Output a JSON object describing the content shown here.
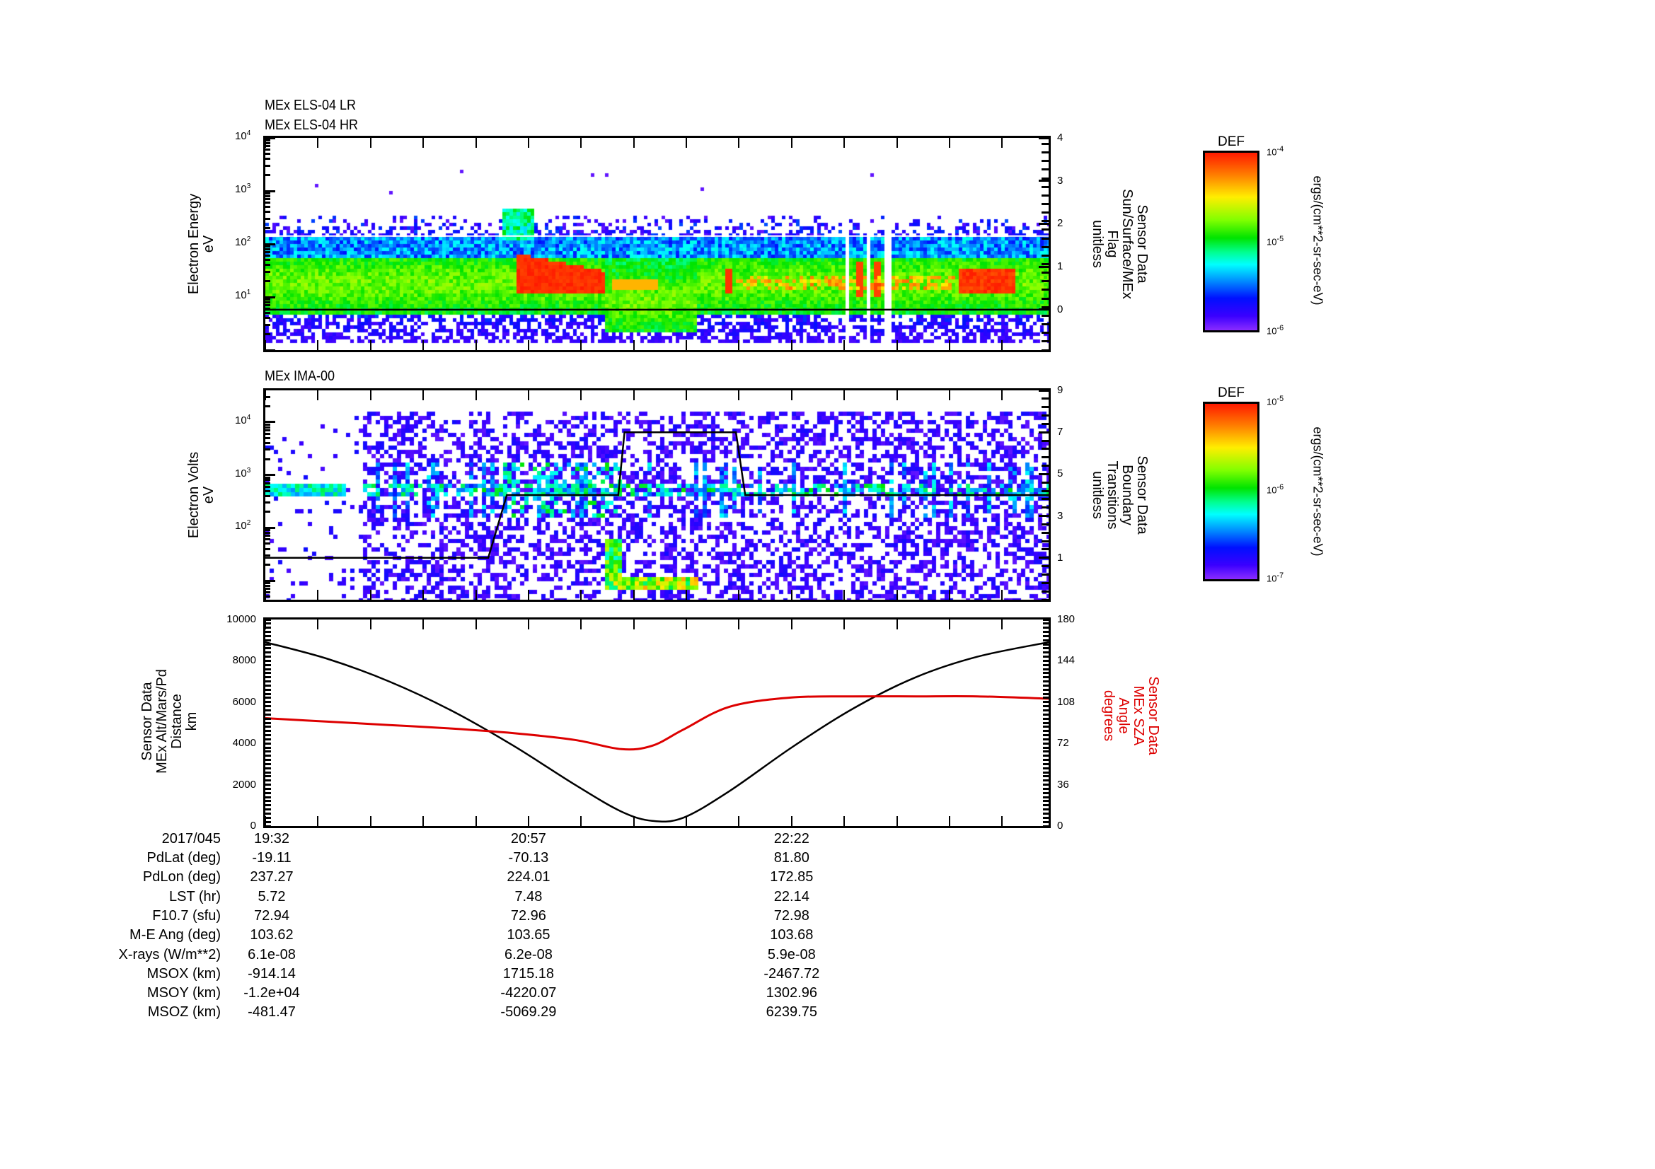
{
  "panels": {
    "els": {
      "titles": [
        "MEx ELS-04 LR",
        "MEx ELS-04 HR"
      ],
      "ylabel": [
        "Electron Energy",
        "eV"
      ],
      "y2label": [
        "Sensor Data",
        "Sun/Surface/MEx",
        "Flag",
        "unitless"
      ],
      "yticks": [
        {
          "exp": "1",
          "v": 1
        },
        {
          "exp": "2",
          "v": 2
        },
        {
          "exp": "3",
          "v": 3
        },
        {
          "exp": "4",
          "v": 4
        }
      ],
      "y2ticks": [
        "0",
        "1",
        "2",
        "3",
        "4"
      ],
      "colorbar": {
        "title": "DEF",
        "max": "-4",
        "mid": "-5",
        "min": "-6",
        "unit": "ergs/(cm**2-sr-sec-eV)"
      }
    },
    "ima": {
      "titles": [
        "MEx IMA-00"
      ],
      "ylabel": [
        "Electron Volts",
        "eV"
      ],
      "y2label": [
        "Sensor Data",
        "Boundary",
        "Transitions",
        "unitless"
      ],
      "yticks": [
        {
          "exp": "2",
          "v": 2
        },
        {
          "exp": "3",
          "v": 3
        },
        {
          "exp": "4",
          "v": 4
        }
      ],
      "y2ticks": [
        "1",
        "3",
        "5",
        "7",
        "9"
      ],
      "colorbar": {
        "title": "DEF",
        "max": "-5",
        "mid": "-6",
        "min": "-7",
        "unit": "ergs/(cm**2-sr-sec-eV)"
      }
    },
    "orbit": {
      "ylabel": [
        "Sensor Data",
        "MEx Alt/Mars/Pd",
        "Distance",
        "km"
      ],
      "y2label": [
        "Sensor Data",
        "MEx SZA",
        "Angle",
        "degrees"
      ],
      "yticks": [
        "0",
        "2000",
        "4000",
        "6000",
        "8000",
        "10000"
      ],
      "y2ticks": [
        "0",
        "36",
        "72",
        "108",
        "144",
        "180"
      ]
    }
  },
  "chart_data": [
    {
      "type": "heatmap",
      "title": "MEx ELS-04 LR / MEx ELS-04 HR",
      "ylabel": "Electron Energy (eV)",
      "yscale": "log",
      "ylim_log10": [
        0,
        4
      ],
      "y2label": "Sensor Data Sun/Surface/MEx Flag (unitless)",
      "y2lim": [
        -0.94,
        4
      ],
      "flag_value": 0,
      "colorbar": {
        "label": "DEF",
        "range": [
          1e-06,
          0.0001
        ],
        "unit": "ergs/(cm**2-sr-sec-eV)"
      }
    },
    {
      "type": "heatmap",
      "title": "MEx IMA-00",
      "ylabel": "Electron Volts (eV)",
      "yscale": "log",
      "ylim_log10": [
        0.64,
        4.6
      ],
      "y2label": "Sensor Data Boundary Transitions (unitless)",
      "y2lim": [
        -1,
        9
      ],
      "boundary_transitions": {
        "t_min": [
          0,
          72,
          78,
          114,
          116,
          152,
          155,
          253
        ],
        "value": [
          1,
          1,
          4,
          4,
          7,
          7,
          4,
          4
        ]
      },
      "colorbar": {
        "label": "DEF",
        "range": [
          1e-07,
          1e-05
        ],
        "unit": "ergs/(cm**2-sr-sec-eV)"
      }
    },
    {
      "type": "line",
      "xlabel": "2017/045",
      "x_minutes_from_1932": [
        0,
        20,
        40,
        60,
        80,
        100,
        115,
        125,
        135,
        150,
        170,
        190,
        210,
        230,
        253
      ],
      "series": [
        {
          "name": "MEx Alt/Mars/Pd Distance (km)",
          "axis": "left",
          "color": "#000000",
          "values": [
            8900,
            8100,
            7000,
            5600,
            3900,
            2000,
            700,
            250,
            400,
            1700,
            3800,
            5700,
            7200,
            8200,
            8900
          ]
        },
        {
          "name": "MEx SZA Angle (degrees)",
          "axis": "right",
          "color": "#dd0000",
          "values": [
            94,
            91,
            88,
            85,
            81,
            75,
            67,
            70,
            84,
            104,
            112,
            113,
            113,
            113,
            111
          ]
        }
      ],
      "ylim": [
        0,
        10000
      ],
      "y2lim": [
        0,
        180
      ]
    }
  ],
  "xaxis": {
    "start_min": 0,
    "end_min": 253,
    "minor_step_min": 17,
    "labels": [
      {
        "t": 0,
        "text": "19:32"
      },
      {
        "t": 85,
        "text": "20:57"
      },
      {
        "t": 170,
        "text": "22:22"
      }
    ]
  },
  "table": {
    "date": "2017/045",
    "rows": [
      {
        "label": "PdLat (deg)",
        "values": [
          "-19.11",
          "-70.13",
          "81.80"
        ]
      },
      {
        "label": "PdLon (deg)",
        "values": [
          "237.27",
          "224.01",
          "172.85"
        ]
      },
      {
        "label": "LST (hr)",
        "values": [
          "5.72",
          "7.48",
          "22.14"
        ]
      },
      {
        "label": "F10.7 (sfu)",
        "values": [
          "72.94",
          "72.96",
          "72.98"
        ]
      },
      {
        "label": "M-E Ang (deg)",
        "values": [
          "103.62",
          "103.65",
          "103.68"
        ]
      },
      {
        "label": "X-rays (W/m**2)",
        "values": [
          "6.1e-08",
          "6.2e-08",
          "5.9e-08"
        ]
      },
      {
        "label": "MSOX (km)",
        "values": [
          "-914.14",
          "1715.18",
          "-2467.72"
        ]
      },
      {
        "label": "MSOY (km)",
        "values": [
          "-1.2e+04",
          "-4220.07",
          "1302.96"
        ]
      },
      {
        "label": "MSOZ (km)",
        "values": [
          "-481.47",
          "-5069.29",
          "6239.75"
        ]
      }
    ]
  },
  "colors": {
    "sza": "#dd0000",
    "axis": "#000000"
  }
}
